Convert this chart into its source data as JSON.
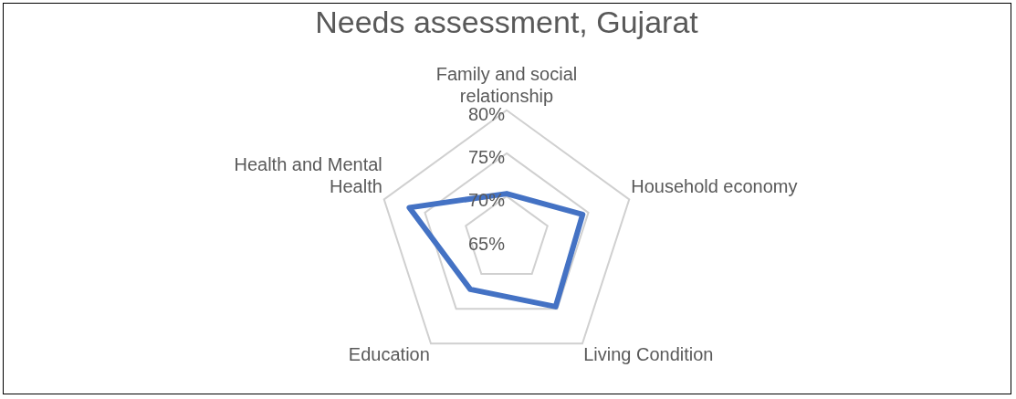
{
  "chart_data": {
    "type": "radar",
    "title": "Needs assessment, Gujarat",
    "categories": [
      "Family and social relationship",
      "Household economy",
      "Living Condition",
      "Education",
      "Health and Mental Health"
    ],
    "series": [
      {
        "color": "#4472c4",
        "values": [
          70.3,
          74.3,
          74.7,
          72.2,
          76.9
        ]
      }
    ],
    "ylim": [
      65,
      80
    ],
    "yticks": [
      {
        "value": 65,
        "label": "65%"
      },
      {
        "value": 70,
        "label": "70%"
      },
      {
        "value": 75,
        "label": "75%"
      },
      {
        "value": 80,
        "label": "80%"
      }
    ],
    "grid": true,
    "legend": false,
    "marker": "none"
  }
}
